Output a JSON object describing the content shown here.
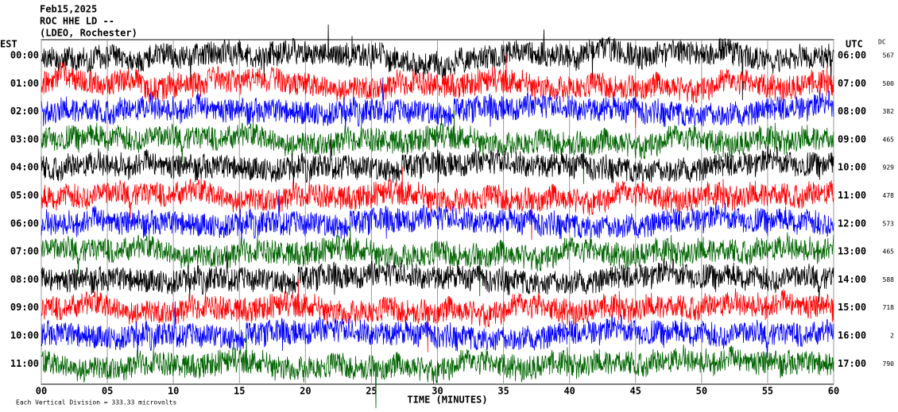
{
  "chart_data": {
    "type": "helicorder",
    "title_lines": [
      "Feb15,2025",
      "ROC HHE LD --",
      "(LDEO, Rochester)"
    ],
    "left_header": "EST",
    "right_header": "UTC",
    "dc_header": "DC",
    "x_label": "TIME (MINUTES)",
    "footnote": "Each Vertical Division =  333.33 microvolts",
    "xlim": [
      0,
      60
    ],
    "xticks": [
      {
        "value": 0,
        "label": "00"
      },
      {
        "value": 5,
        "label": "05"
      },
      10,
      15,
      20,
      25,
      30,
      35,
      40,
      45,
      50,
      55,
      60
    ],
    "colors": [
      "#000000",
      "#ff0000",
      "#0000ff",
      "#006400"
    ],
    "rows": [
      {
        "est": "00:00",
        "utc": "06:00",
        "dc": 567
      },
      {
        "est": "01:00",
        "utc": "07:00",
        "dc": 500
      },
      {
        "est": "02:00",
        "utc": "08:00",
        "dc": 382
      },
      {
        "est": "03:00",
        "utc": "09:00",
        "dc": 465
      },
      {
        "est": "04:00",
        "utc": "10:00",
        "dc": 929
      },
      {
        "est": "05:00",
        "utc": "11:00",
        "dc": 478
      },
      {
        "est": "06:00",
        "utc": "12:00",
        "dc": 573
      },
      {
        "est": "07:00",
        "utc": "13:00",
        "dc": 465
      },
      {
        "est": "08:00",
        "utc": "14:00",
        "dc": 588
      },
      {
        "est": "09:00",
        "utc": "15:00",
        "dc": 718
      },
      {
        "est": "10:00",
        "utc": "16:00",
        "dc": 2
      },
      {
        "est": "11:00",
        "utc": "17:00",
        "dc": 790
      }
    ]
  }
}
